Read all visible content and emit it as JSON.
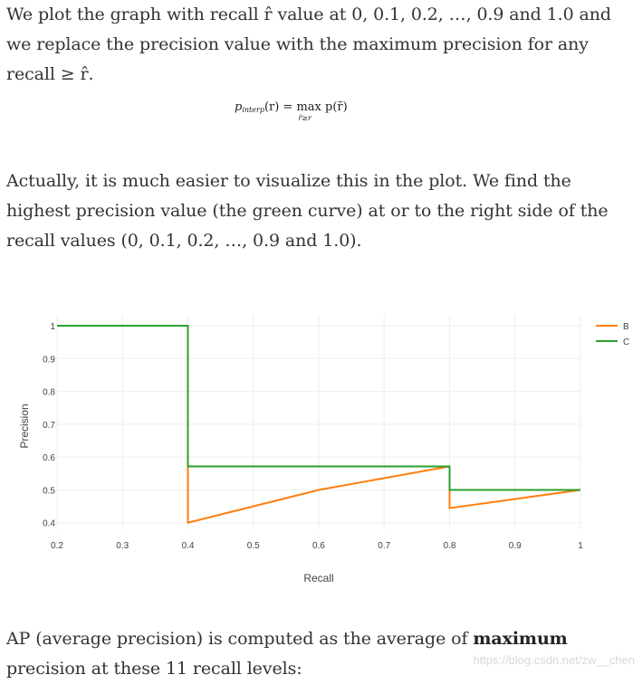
{
  "para1": {
    "text": "We plot the graph with recall r̂ value at 0, 0.1, 0.2, …, 0.9 and 1.0 and we replace the precision value with the maximum precision for any recall ≥ r̂."
  },
  "formula": {
    "p": "p",
    "sub": "interp",
    "arg": "(r) = ",
    "max": "max",
    "under": "r̃≥r",
    "rhs": " p(r̃)"
  },
  "para2": {
    "text": "Actually, it is much easier to visualize this in the plot. We find the highest precision value (the green curve) at or to the right side of the recall values (0, 0.1, 0.2, …, 0.9 and 1.0)."
  },
  "chart_data": {
    "type": "line",
    "xlabel": "Recall",
    "ylabel": "Precision",
    "xlim": [
      0.2,
      1.0
    ],
    "ylim": [
      0.38,
      1.0
    ],
    "xticks": [
      0.2,
      0.3,
      0.4,
      0.5,
      0.6,
      0.7,
      0.8,
      0.9,
      1.0
    ],
    "xtick_labels": [
      "0.2",
      "0.3",
      "0.4",
      "0.5",
      "0.6",
      "0.7",
      "0.8",
      "0.9",
      "1"
    ],
    "yticks": [
      0.4,
      0.5,
      0.6,
      0.7,
      0.8,
      0.9,
      1.0
    ],
    "ytick_labels": [
      "0.4",
      "0.5",
      "0.6",
      "0.7",
      "0.8",
      "0.9",
      "1"
    ],
    "grid": true,
    "legend_position": "top-right",
    "series": [
      {
        "name": "B",
        "color": "#ff7f0e",
        "x": [
          0.2,
          0.4,
          0.4,
          0.6,
          0.8,
          0.8,
          1.0
        ],
        "y": [
          1.0,
          1.0,
          0.4,
          0.5,
          0.5714,
          0.4444,
          0.5
        ]
      },
      {
        "name": "C",
        "color": "#2ca02c",
        "x": [
          0.2,
          0.4,
          0.4,
          0.8,
          0.8,
          1.0
        ],
        "y": [
          1.0,
          1.0,
          0.5714,
          0.5714,
          0.5,
          0.5
        ]
      }
    ]
  },
  "para3": {
    "text_before": "AP (average precision) is computed as the average of ",
    "bold": "maximum",
    "text_after": " precision at these 11 recall levels:"
  },
  "watermark": "https://blog.csdn.net/zw__chen"
}
